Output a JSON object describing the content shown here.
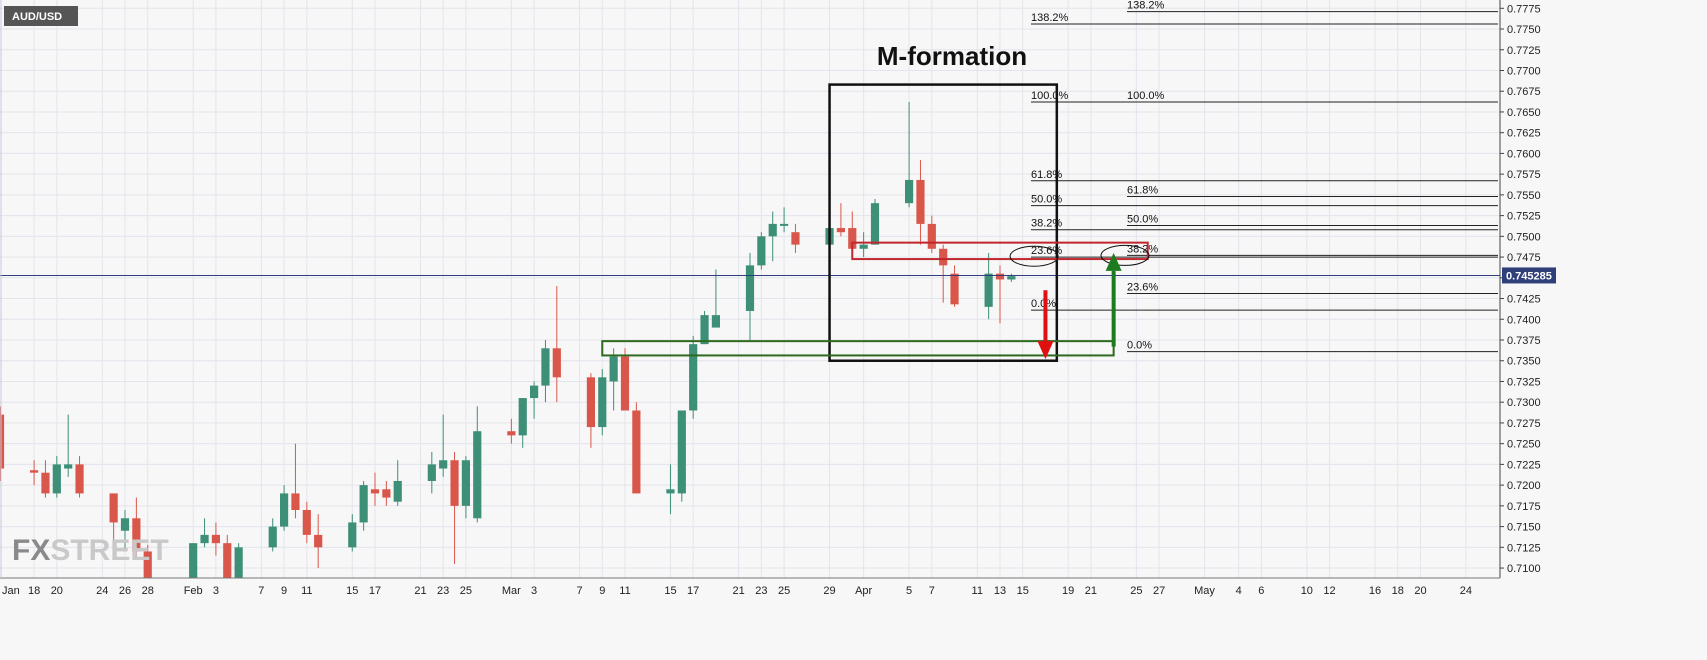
{
  "symbol": "AUD/USD",
  "watermark": {
    "fx": "FX",
    "street": "STREET"
  },
  "chart_data": {
    "type": "candlestick",
    "title": "M-formation",
    "ylim": [
      0.7088,
      0.7785
    ],
    "yticks": [
      0.71,
      0.7125,
      0.715,
      0.7175,
      0.72,
      0.7225,
      0.725,
      0.7275,
      0.73,
      0.7325,
      0.735,
      0.7375,
      0.74,
      0.7425,
      0.745,
      0.7475,
      0.75,
      0.7525,
      0.755,
      0.7575,
      0.76,
      0.7625,
      0.765,
      0.7675,
      0.77,
      0.7725,
      0.775,
      0.7775
    ],
    "ytick_labels": [
      "0.7100",
      "0.7125",
      "0.7150",
      "0.7175",
      "0.7200",
      "0.7225",
      "0.7250",
      "0.7275",
      "0.7300",
      "0.7325",
      "0.7350",
      "0.7375",
      "0.7400",
      "0.7425",
      "0.7450",
      "0.7475",
      "0.7500",
      "0.7525",
      "0.7550",
      "0.7575",
      "0.7600",
      "0.7625",
      "0.7650",
      "0.7675",
      "0.7700",
      "0.7725",
      "0.7750",
      "0.7775"
    ],
    "xlim": [
      "2021-01-15",
      "2021-05-27"
    ],
    "xticks": [
      {
        "date": "2021-01-18",
        "label": "18"
      },
      {
        "date": "2021-01-20",
        "label": "20"
      },
      {
        "date": "2021-01-24",
        "label": "24"
      },
      {
        "date": "2021-01-26",
        "label": "26"
      },
      {
        "date": "2021-01-28",
        "label": "28"
      },
      {
        "date": "2021-02-01",
        "label": "Feb"
      },
      {
        "date": "2021-02-03",
        "label": "3"
      },
      {
        "date": "2021-02-07",
        "label": "7"
      },
      {
        "date": "2021-02-09",
        "label": "9"
      },
      {
        "date": "2021-02-11",
        "label": "11"
      },
      {
        "date": "2021-02-15",
        "label": "15"
      },
      {
        "date": "2021-02-17",
        "label": "17"
      },
      {
        "date": "2021-02-21",
        "label": "21"
      },
      {
        "date": "2021-02-23",
        "label": "23"
      },
      {
        "date": "2021-02-25",
        "label": "25"
      },
      {
        "date": "2021-03-01",
        "label": "Mar"
      },
      {
        "date": "2021-03-03",
        "label": "3"
      },
      {
        "date": "2021-03-07",
        "label": "7"
      },
      {
        "date": "2021-03-09",
        "label": "9"
      },
      {
        "date": "2021-03-11",
        "label": "11"
      },
      {
        "date": "2021-03-15",
        "label": "15"
      },
      {
        "date": "2021-03-17",
        "label": "17"
      },
      {
        "date": "2021-03-21",
        "label": "21"
      },
      {
        "date": "2021-03-23",
        "label": "23"
      },
      {
        "date": "2021-03-25",
        "label": "25"
      },
      {
        "date": "2021-03-29",
        "label": "29"
      },
      {
        "date": "2021-04-01",
        "label": "Apr"
      },
      {
        "date": "2021-04-05",
        "label": "5"
      },
      {
        "date": "2021-04-07",
        "label": "7"
      },
      {
        "date": "2021-04-11",
        "label": "11"
      },
      {
        "date": "2021-04-13",
        "label": "13"
      },
      {
        "date": "2021-04-15",
        "label": "15"
      },
      {
        "date": "2021-04-19",
        "label": "19"
      },
      {
        "date": "2021-04-21",
        "label": "21"
      },
      {
        "date": "2021-04-25",
        "label": "25"
      },
      {
        "date": "2021-04-27",
        "label": "27"
      },
      {
        "date": "2021-05-01",
        "label": "May"
      },
      {
        "date": "2021-05-04",
        "label": "4"
      },
      {
        "date": "2021-05-06",
        "label": "6"
      },
      {
        "date": "2021-05-10",
        "label": "10"
      },
      {
        "date": "2021-05-12",
        "label": "12"
      },
      {
        "date": "2021-05-16",
        "label": "16"
      },
      {
        "date": "2021-05-18",
        "label": "18"
      },
      {
        "date": "2021-05-20",
        "label": "20"
      },
      {
        "date": "2021-05-24",
        "label": "24"
      }
    ],
    "partial_x_label": "Jan",
    "current_price": 0.745285,
    "current_price_label": "0.745285",
    "candles": [
      {
        "date": "2021-01-15",
        "o": 0.7285,
        "h": 0.7295,
        "l": 0.7205,
        "c": 0.722
      },
      {
        "date": "2021-01-18",
        "o": 0.7218,
        "h": 0.723,
        "l": 0.72,
        "c": 0.7215
      },
      {
        "date": "2021-01-19",
        "o": 0.7215,
        "h": 0.723,
        "l": 0.7185,
        "c": 0.719
      },
      {
        "date": "2021-01-20",
        "o": 0.719,
        "h": 0.7235,
        "l": 0.7185,
        "c": 0.7225
      },
      {
        "date": "2021-01-21",
        "o": 0.722,
        "h": 0.7285,
        "l": 0.721,
        "c": 0.7225
      },
      {
        "date": "2021-01-22",
        "o": 0.7225,
        "h": 0.7235,
        "l": 0.7185,
        "c": 0.719
      },
      {
        "date": "2021-01-25",
        "o": 0.719,
        "h": 0.719,
        "l": 0.713,
        "c": 0.7155
      },
      {
        "date": "2021-01-26",
        "o": 0.7145,
        "h": 0.717,
        "l": 0.712,
        "c": 0.716
      },
      {
        "date": "2021-01-27",
        "o": 0.716,
        "h": 0.7185,
        "l": 0.711,
        "c": 0.712
      },
      {
        "date": "2021-01-28",
        "o": 0.712,
        "h": 0.7128,
        "l": 0.7088,
        "c": 0.7088
      },
      {
        "date": "2021-02-01",
        "o": 0.7088,
        "h": 0.713,
        "l": 0.7088,
        "c": 0.713
      },
      {
        "date": "2021-02-02",
        "o": 0.713,
        "h": 0.716,
        "l": 0.7125,
        "c": 0.714
      },
      {
        "date": "2021-02-03",
        "o": 0.714,
        "h": 0.7155,
        "l": 0.7115,
        "c": 0.713
      },
      {
        "date": "2021-02-04",
        "o": 0.713,
        "h": 0.714,
        "l": 0.7088,
        "c": 0.7088
      },
      {
        "date": "2021-02-05",
        "o": 0.7088,
        "h": 0.713,
        "l": 0.7088,
        "c": 0.7125
      },
      {
        "date": "2021-02-08",
        "o": 0.7125,
        "h": 0.716,
        "l": 0.712,
        "c": 0.715
      },
      {
        "date": "2021-02-09",
        "o": 0.715,
        "h": 0.72,
        "l": 0.7145,
        "c": 0.719
      },
      {
        "date": "2021-02-10",
        "o": 0.719,
        "h": 0.725,
        "l": 0.716,
        "c": 0.717
      },
      {
        "date": "2021-02-11",
        "o": 0.717,
        "h": 0.718,
        "l": 0.713,
        "c": 0.714
      },
      {
        "date": "2021-02-12",
        "o": 0.714,
        "h": 0.7165,
        "l": 0.71,
        "c": 0.7125
      },
      {
        "date": "2021-02-15",
        "o": 0.7125,
        "h": 0.7165,
        "l": 0.712,
        "c": 0.7155
      },
      {
        "date": "2021-02-16",
        "o": 0.7155,
        "h": 0.7205,
        "l": 0.7145,
        "c": 0.72
      },
      {
        "date": "2021-02-17",
        "o": 0.7195,
        "h": 0.7215,
        "l": 0.7175,
        "c": 0.719
      },
      {
        "date": "2021-02-18",
        "o": 0.7195,
        "h": 0.7205,
        "l": 0.7175,
        "c": 0.7185
      },
      {
        "date": "2021-02-19",
        "o": 0.718,
        "h": 0.723,
        "l": 0.7175,
        "c": 0.7205
      },
      {
        "date": "2021-02-22",
        "o": 0.7205,
        "h": 0.724,
        "l": 0.719,
        "c": 0.7225
      },
      {
        "date": "2021-02-23",
        "o": 0.722,
        "h": 0.7285,
        "l": 0.721,
        "c": 0.723
      },
      {
        "date": "2021-02-24",
        "o": 0.723,
        "h": 0.724,
        "l": 0.7105,
        "c": 0.7175
      },
      {
        "date": "2021-02-25",
        "o": 0.7175,
        "h": 0.7235,
        "l": 0.716,
        "c": 0.723
      },
      {
        "date": "2021-02-26",
        "o": 0.716,
        "h": 0.7295,
        "l": 0.7155,
        "c": 0.7265
      },
      {
        "date": "2021-03-01",
        "o": 0.7265,
        "h": 0.728,
        "l": 0.725,
        "c": 0.726
      },
      {
        "date": "2021-03-02",
        "o": 0.726,
        "h": 0.7305,
        "l": 0.7245,
        "c": 0.7305
      },
      {
        "date": "2021-03-03",
        "o": 0.7305,
        "h": 0.7325,
        "l": 0.728,
        "c": 0.732
      },
      {
        "date": "2021-03-04",
        "o": 0.732,
        "h": 0.7375,
        "l": 0.73,
        "c": 0.7365
      },
      {
        "date": "2021-03-05",
        "o": 0.7365,
        "h": 0.744,
        "l": 0.73,
        "c": 0.733
      },
      {
        "date": "2021-03-08",
        "o": 0.733,
        "h": 0.7335,
        "l": 0.7245,
        "c": 0.727
      },
      {
        "date": "2021-03-09",
        "o": 0.727,
        "h": 0.734,
        "l": 0.726,
        "c": 0.733
      },
      {
        "date": "2021-03-10",
        "o": 0.7325,
        "h": 0.7365,
        "l": 0.729,
        "c": 0.7355
      },
      {
        "date": "2021-03-11",
        "o": 0.7355,
        "h": 0.7365,
        "l": 0.729,
        "c": 0.729
      },
      {
        "date": "2021-03-12",
        "o": 0.729,
        "h": 0.73,
        "l": 0.719,
        "c": 0.719
      },
      {
        "date": "2021-03-15",
        "o": 0.719,
        "h": 0.7225,
        "l": 0.7165,
        "c": 0.7195
      },
      {
        "date": "2021-03-16",
        "o": 0.719,
        "h": 0.729,
        "l": 0.718,
        "c": 0.729
      },
      {
        "date": "2021-03-17",
        "o": 0.729,
        "h": 0.738,
        "l": 0.728,
        "c": 0.737
      },
      {
        "date": "2021-03-18",
        "o": 0.737,
        "h": 0.741,
        "l": 0.737,
        "c": 0.7405
      },
      {
        "date": "2021-03-19",
        "o": 0.739,
        "h": 0.746,
        "l": 0.739,
        "c": 0.7405
      },
      {
        "date": "2021-03-22",
        "o": 0.741,
        "h": 0.748,
        "l": 0.7375,
        "c": 0.7465
      },
      {
        "date": "2021-03-23",
        "o": 0.7465,
        "h": 0.7505,
        "l": 0.746,
        "c": 0.75
      },
      {
        "date": "2021-03-24",
        "o": 0.75,
        "h": 0.753,
        "l": 0.747,
        "c": 0.7515
      },
      {
        "date": "2021-03-25",
        "o": 0.7515,
        "h": 0.7535,
        "l": 0.7505,
        "c": 0.7515
      },
      {
        "date": "2021-03-26",
        "o": 0.7505,
        "h": 0.7515,
        "l": 0.748,
        "c": 0.749
      },
      {
        "date": "2021-03-29",
        "o": 0.749,
        "h": 0.7518,
        "l": 0.745,
        "c": 0.751
      },
      {
        "date": "2021-03-30",
        "o": 0.751,
        "h": 0.754,
        "l": 0.75,
        "c": 0.7505
      },
      {
        "date": "2021-03-31",
        "o": 0.751,
        "h": 0.753,
        "l": 0.748,
        "c": 0.7485
      },
      {
        "date": "2021-04-01",
        "o": 0.7485,
        "h": 0.7505,
        "l": 0.7475,
        "c": 0.749
      },
      {
        "date": "2021-04-02",
        "o": 0.749,
        "h": 0.7545,
        "l": 0.749,
        "c": 0.754
      },
      {
        "date": "2021-04-05",
        "o": 0.754,
        "h": 0.7662,
        "l": 0.7535,
        "c": 0.7568
      },
      {
        "date": "2021-04-06",
        "o": 0.7568,
        "h": 0.7592,
        "l": 0.749,
        "c": 0.7515
      },
      {
        "date": "2021-04-07",
        "o": 0.7515,
        "h": 0.7525,
        "l": 0.748,
        "c": 0.7485
      },
      {
        "date": "2021-04-08",
        "o": 0.7485,
        "h": 0.749,
        "l": 0.742,
        "c": 0.7465
      },
      {
        "date": "2021-04-09",
        "o": 0.7455,
        "h": 0.7465,
        "l": 0.7415,
        "c": 0.7418
      },
      {
        "date": "2021-04-12",
        "o": 0.7415,
        "h": 0.748,
        "l": 0.74,
        "c": 0.7455
      },
      {
        "date": "2021-04-13",
        "o": 0.7455,
        "h": 0.7465,
        "l": 0.7395,
        "c": 0.7448
      },
      {
        "date": "2021-04-14",
        "o": 0.7448,
        "h": 0.7455,
        "l": 0.7445,
        "c": 0.7452
      }
    ],
    "box": {
      "x0": "2021-03-29",
      "x1": "2021-04-18",
      "y0": 0.735,
      "y1": 0.7683
    },
    "neckline_zone": {
      "x0": "2021-03-09",
      "x1": "2021-04-23",
      "y0": 0.736,
      "y1": 0.737
    },
    "resistance_zone": {
      "x0": "2021-03-31",
      "x1": "2021-04-26",
      "y0": 0.7475,
      "y1": 0.749
    },
    "fib_left": [
      {
        "label": "138.2%",
        "y": 0.7756
      },
      {
        "label": "100.0%",
        "y": 0.7662
      },
      {
        "label": "61.8%",
        "y": 0.7567
      },
      {
        "label": "50.0%",
        "y": 0.7537
      },
      {
        "label": "38.2%",
        "y": 0.7508
      },
      {
        "label": "23.6%",
        "y": 0.7475
      },
      {
        "label": "0.0%",
        "y": 0.7411
      }
    ],
    "fib_right": [
      {
        "label": "138.2%",
        "y": 0.7771
      },
      {
        "label": "100.0%",
        "y": 0.7662
      },
      {
        "label": "61.8%",
        "y": 0.7548
      },
      {
        "label": "50.0%",
        "y": 0.7513
      },
      {
        "label": "38.2%",
        "y": 0.7477
      },
      {
        "label": "23.6%",
        "y": 0.7431
      },
      {
        "label": "0.0%",
        "y": 0.7361
      }
    ],
    "arrow_down": {
      "x": "2021-04-17",
      "y_from": 0.7435,
      "y_to": 0.7352
    },
    "arrow_up": {
      "x": "2021-04-23",
      "y_from": 0.7367,
      "y_to": 0.748
    },
    "ellipses": [
      {
        "x": "2021-04-16",
        "y": 0.7476
      },
      {
        "x": "2021-04-24",
        "y": 0.7477
      }
    ],
    "colors": {
      "bull": "#3d8f78",
      "bear": "#d9574a",
      "grid": "#e4e4ec",
      "price_line": "#2f3f7a",
      "price_label_bg": "#2f3f7a",
      "box": "#111111",
      "green_zone": "#2d6a1f",
      "red_zone": "#c0272d",
      "arrow_down": "#e01010",
      "arrow_up": "#1e7a1e",
      "symbol_bg": "#555555"
    }
  }
}
